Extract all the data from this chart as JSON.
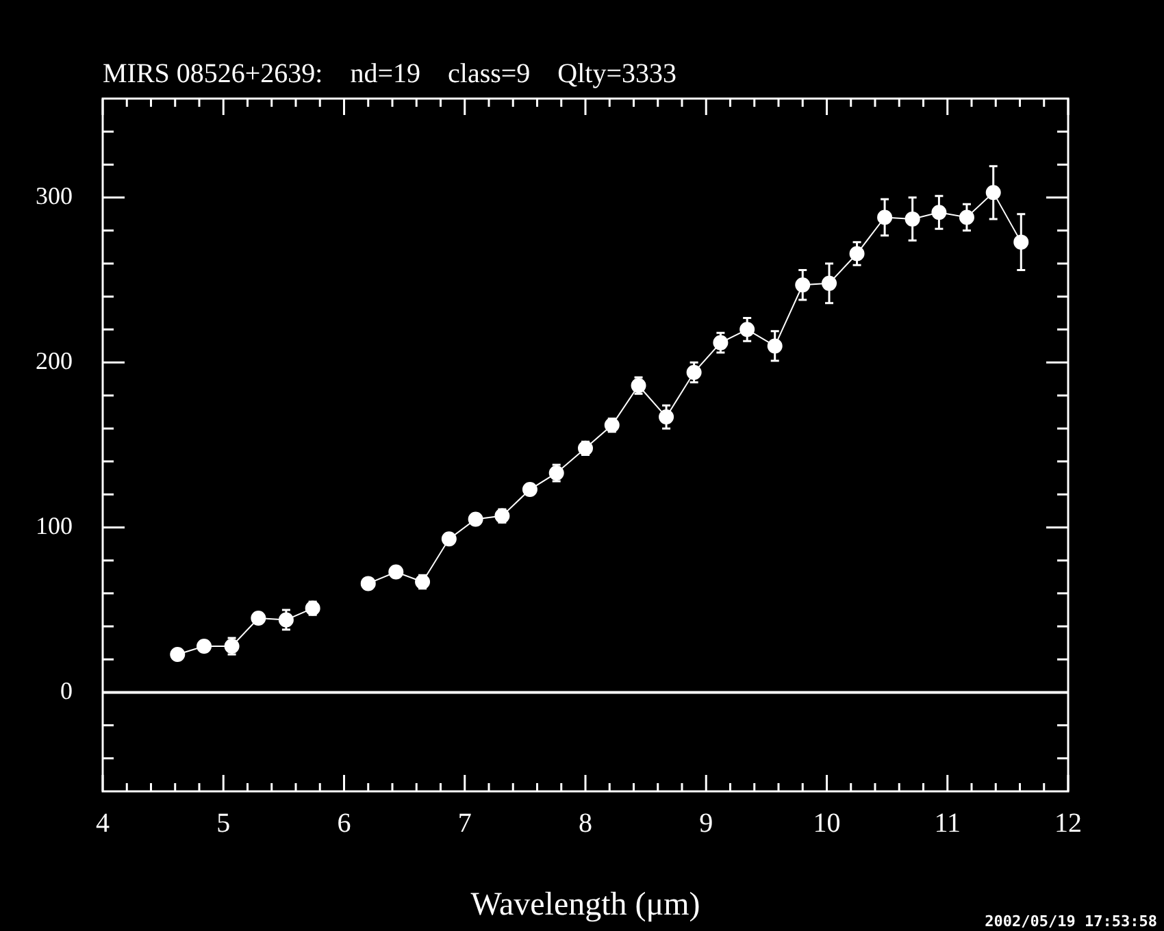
{
  "chart_data": {
    "type": "line",
    "title": "MIRS 08526+2639:    nd=19    class=9    Qlty=3333",
    "xlabel": "Wavelength (μm)",
    "annotations": [
      "2002/05/19 17:53:58"
    ],
    "series": [
      {
        "color": "#ffffff",
        "x": [
          4.62,
          4.84,
          5.07,
          5.29,
          5.52,
          5.74
        ],
        "values": [
          23,
          28,
          28,
          45,
          44,
          51
        ],
        "errors": [
          null,
          null,
          5,
          null,
          6,
          4
        ]
      },
      {
        "color": "#ffffff",
        "x": [
          6.2,
          6.43,
          6.65,
          6.87,
          7.09,
          7.31,
          7.54,
          7.76,
          8.0,
          8.22,
          8.44,
          8.67,
          8.9,
          9.12,
          9.34,
          9.57,
          9.8,
          10.02,
          10.25,
          10.48,
          10.71,
          10.93,
          11.16,
          11.38,
          11.61
        ],
        "values": [
          66,
          73,
          67,
          93,
          105,
          107,
          123,
          133,
          148,
          162,
          186,
          167,
          194,
          212,
          220,
          210,
          247,
          248,
          266,
          288,
          287,
          291,
          288,
          303,
          273
        ],
        "errors": [
          null,
          3,
          4,
          null,
          null,
          4,
          null,
          5,
          4,
          4,
          5,
          7,
          6,
          6,
          7,
          9,
          9,
          12,
          7,
          11,
          13,
          10,
          8,
          16,
          17
        ]
      }
    ],
    "marker": "circle",
    "grid": false,
    "legend": false,
    "ref_lines": [
      {
        "axis": "y",
        "value": 0,
        "color": "#ffffff"
      }
    ],
    "xlim": [
      4,
      12
    ],
    "xticks": [
      4,
      {
        "value": 4.2,
        "label": null
      },
      {
        "value": 4.4,
        "label": null
      },
      {
        "value": 4.6,
        "label": null
      },
      {
        "value": 4.8,
        "label": null
      },
      5,
      {
        "value": 5.2,
        "label": null
      },
      {
        "value": 5.4,
        "label": null
      },
      {
        "value": 5.6,
        "label": null
      },
      {
        "value": 5.8,
        "label": null
      },
      6,
      {
        "value": 6.2,
        "label": null
      },
      {
        "value": 6.4,
        "label": null
      },
      {
        "value": 6.6,
        "label": null
      },
      {
        "value": 6.8,
        "label": null
      },
      7,
      {
        "value": 7.2,
        "label": null
      },
      {
        "value": 7.4,
        "label": null
      },
      {
        "value": 7.6,
        "label": null
      },
      {
        "value": 7.8,
        "label": null
      },
      8,
      {
        "value": 8.2,
        "label": null
      },
      {
        "value": 8.4,
        "label": null
      },
      {
        "value": 8.6,
        "label": null
      },
      {
        "value": 8.8,
        "label": null
      },
      9,
      {
        "value": 9.2,
        "label": null
      },
      {
        "value": 9.4,
        "label": null
      },
      {
        "value": 9.6,
        "label": null
      },
      {
        "value": 9.8,
        "label": null
      },
      10,
      {
        "value": 10.2,
        "label": null
      },
      {
        "value": 10.4,
        "label": null
      },
      {
        "value": 10.6,
        "label": null
      },
      {
        "value": 10.8,
        "label": null
      },
      11,
      {
        "value": 11.2,
        "label": null
      },
      {
        "value": 11.4,
        "label": null
      },
      {
        "value": 11.6,
        "label": null
      },
      {
        "value": 11.8,
        "label": null
      },
      12
    ],
    "ylim": [
      -60,
      360
    ],
    "yticks": [
      {
        "value": -40,
        "label": null
      },
      {
        "value": -20,
        "label": null
      },
      0,
      {
        "value": 20,
        "label": null
      },
      {
        "value": 40,
        "label": null
      },
      {
        "value": 60,
        "label": null
      },
      {
        "value": 80,
        "label": null
      },
      100,
      {
        "value": 120,
        "label": null
      },
      {
        "value": 140,
        "label": null
      },
      {
        "value": 160,
        "label": null
      },
      {
        "value": 180,
        "label": null
      },
      200,
      {
        "value": 220,
        "label": null
      },
      {
        "value": 240,
        "label": null
      },
      {
        "value": 260,
        "label": null
      },
      {
        "value": 280,
        "label": null
      },
      300,
      {
        "value": 320,
        "label": null
      },
      {
        "value": 340,
        "label": null
      }
    ]
  }
}
